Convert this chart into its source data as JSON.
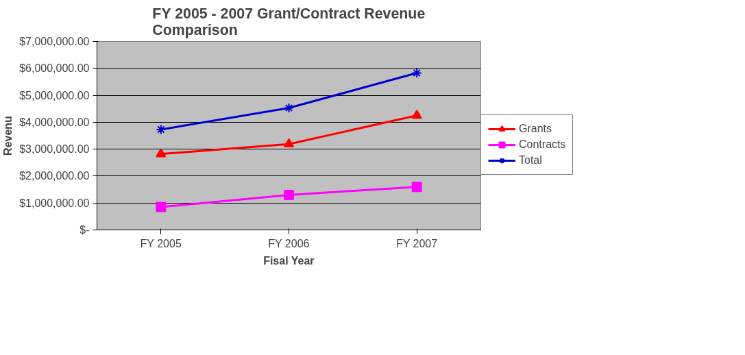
{
  "chart_data": {
    "type": "line",
    "title": "FY 2005 - 2007 Grant/Contract Revenue\nComparison",
    "xlabel": "Fisal Year",
    "ylabel": "Revenu",
    "categories": [
      "FY 2005",
      "FY 2006",
      "FY 2007"
    ],
    "series": [
      {
        "name": "Grants",
        "color": "#ff0000",
        "marker": "triangle",
        "values": [
          2820000,
          3190000,
          4250000
        ]
      },
      {
        "color": "#ff00ff",
        "name": "Contracts",
        "marker": "square",
        "values": [
          850000,
          1300000,
          1600000
        ]
      },
      {
        "name": "Total",
        "color": "#0000cc",
        "marker": "cross",
        "values": [
          3730000,
          4530000,
          5830000
        ]
      }
    ],
    "ylim": [
      0,
      7000000
    ],
    "yticks": [
      {
        "value": 0,
        "label": "$-"
      },
      {
        "value": 1000000,
        "label": "$1,000,000.00"
      },
      {
        "value": 2000000,
        "label": "$2,000,000.00"
      },
      {
        "value": 3000000,
        "label": "$3,000,000.00"
      },
      {
        "value": 4000000,
        "label": "$4,000,000.00"
      },
      {
        "value": 5000000,
        "label": "$5,000,000.00"
      },
      {
        "value": 6000000,
        "label": "$6,000,000.00"
      },
      {
        "value": 7000000,
        "label": "$7,000,000.00"
      }
    ],
    "grid": "y",
    "legend": "right",
    "line_style": "solid"
  }
}
